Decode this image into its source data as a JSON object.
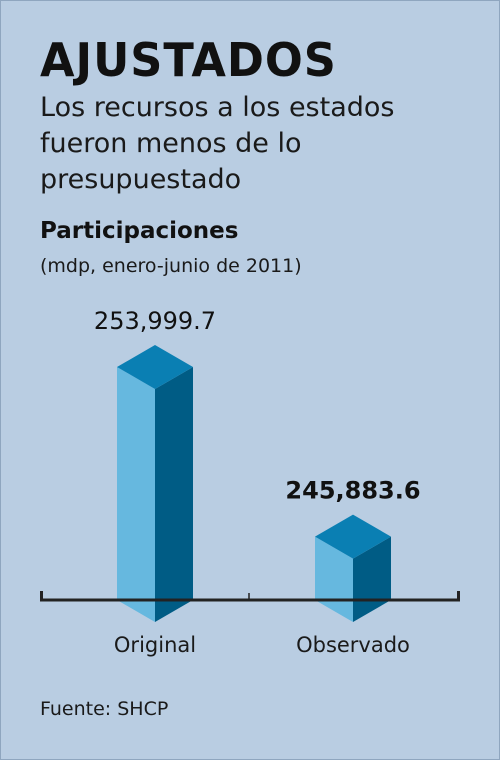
{
  "header": {
    "title": "AJUSTADOS",
    "subtitle": "Los recursos a los estados fueron menos de lo presupuestado"
  },
  "chart_data": {
    "type": "bar",
    "title": "Participaciones",
    "subtitle": "(mdp, enero-junio de 2011)",
    "categories": [
      "Original",
      "Observado"
    ],
    "values": [
      253999.7,
      245883.6
    ],
    "value_labels": [
      "253,999.7",
      "245,883.6"
    ],
    "colors": {
      "front": "#66b8df",
      "side": "#005c85",
      "top": "#0a7fb3",
      "axis": "#222222"
    },
    "grid": false,
    "legend": "none"
  },
  "footer": {
    "source": "Fuente: SHCP"
  }
}
